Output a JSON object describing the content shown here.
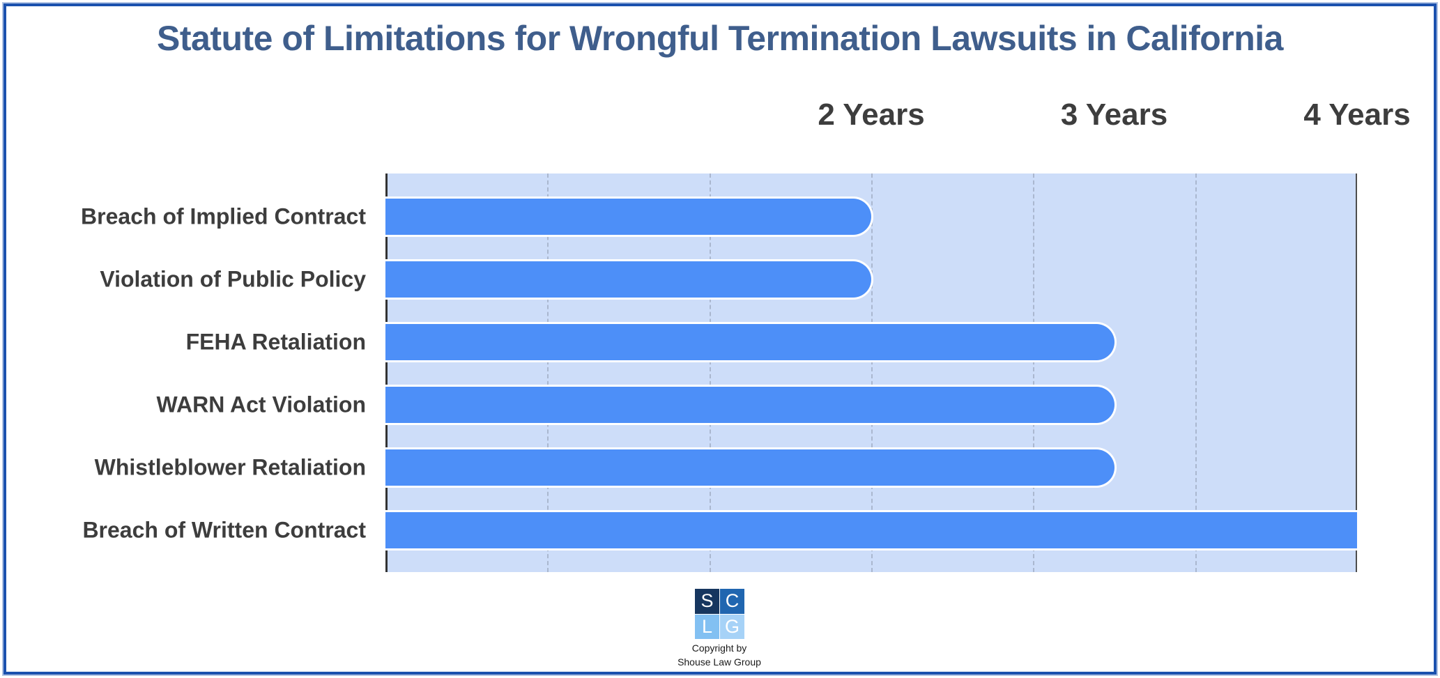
{
  "title": "Statute of Limitations for Wrongful Termination Lawsuits in California",
  "chart_data": {
    "type": "bar",
    "orientation": "horizontal",
    "title": "Statute of Limitations for Wrongful Termination Lawsuits in California",
    "categories": [
      "Breach of Implied Contract",
      "Violation of Public Policy",
      "FEHA Retaliation",
      "WARN Act Violation",
      "Whistleblower Retaliation",
      "Breach of Written Contract"
    ],
    "values": [
      2,
      2,
      3,
      3,
      3,
      4
    ],
    "unit": "years",
    "xlabel": "",
    "ylabel": "",
    "xlim": [
      0,
      4
    ],
    "x_ticks": [
      {
        "label": "2 Years",
        "value": 2
      },
      {
        "label": "3 Years",
        "value": 3
      },
      {
        "label": "4 Years",
        "value": 4
      }
    ],
    "gridlines": {
      "visible": true,
      "style": "dashed-vertical",
      "divisions": 6
    },
    "legend": false
  },
  "colors": {
    "bar": "#4D8FF8",
    "plot_background": "#CDDDF9",
    "title": "#3F5E8C",
    "label": "#3D3D3D",
    "gridline": "#AAB7CF",
    "frame_border": "#1B51AE"
  },
  "footer": {
    "logo_squares": [
      {
        "letter": "S",
        "color": "#16365F"
      },
      {
        "letter": "C",
        "color": "#2066B0"
      },
      {
        "letter": "L",
        "color": "#82C0F2"
      },
      {
        "letter": "G",
        "color": "#A6D2F7"
      }
    ],
    "copyright_line1": "Copyright by",
    "copyright_line2": "Shouse Law Group"
  }
}
